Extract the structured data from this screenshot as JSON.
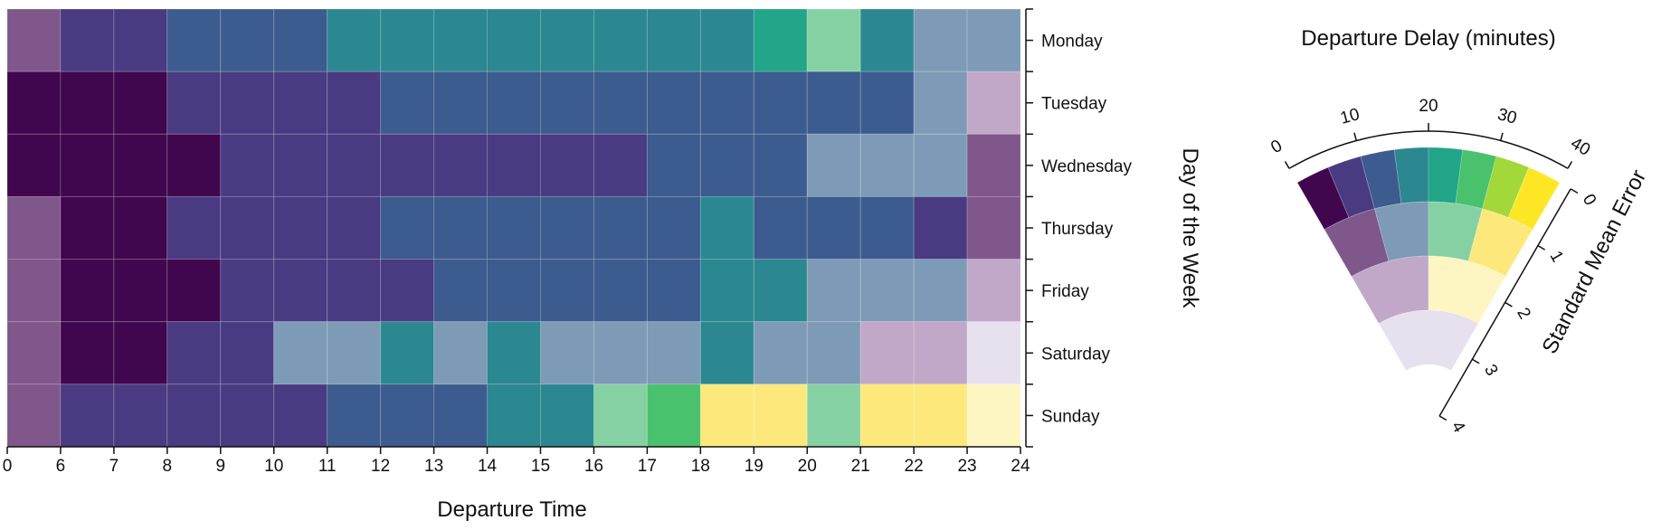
{
  "chart_data": {
    "type": "heatmap",
    "encoding": "value-suppressing uncertainty palette: hue encodes delay, lightness encodes uncertainty",
    "x": {
      "label": "Departure Time",
      "ticks": [
        "0",
        "6",
        "7",
        "8",
        "9",
        "10",
        "11",
        "12",
        "13",
        "14",
        "15",
        "16",
        "17",
        "18",
        "19",
        "20",
        "21",
        "22",
        "23",
        "24"
      ],
      "bins": [
        [
          0,
          6
        ],
        [
          6,
          7
        ],
        [
          7,
          8
        ],
        [
          8,
          9
        ],
        [
          9,
          10
        ],
        [
          10,
          11
        ],
        [
          11,
          12
        ],
        [
          12,
          13
        ],
        [
          13,
          14
        ],
        [
          14,
          15
        ],
        [
          15,
          16
        ],
        [
          16,
          17
        ],
        [
          17,
          18
        ],
        [
          18,
          19
        ],
        [
          19,
          20
        ],
        [
          20,
          21
        ],
        [
          21,
          22
        ],
        [
          22,
          23
        ],
        [
          23,
          24
        ]
      ]
    },
    "y": {
      "label": "Day of the Week",
      "categories": [
        "Monday",
        "Tuesday",
        "Wednesday",
        "Thursday",
        "Friday",
        "Saturday",
        "Sunday"
      ]
    },
    "cells": [
      [
        "#7f578b",
        "#493a82",
        "#493a82",
        "#3c5b8e",
        "#3c5b8e",
        "#3c5b8e",
        "#2b8790",
        "#2b8790",
        "#2b8790",
        "#2b8790",
        "#2b8790",
        "#2b8790",
        "#2b8790",
        "#2b8790",
        "#22a588",
        "#86d1a4",
        "#2b8790",
        "#7d9bb6",
        "#7d9bb6"
      ],
      [
        "#41074e",
        "#41074e",
        "#41074e",
        "#493a82",
        "#493a82",
        "#493a82",
        "#493a82",
        "#3c5b8e",
        "#3c5b8e",
        "#3c5b8e",
        "#3c5b8e",
        "#3c5b8e",
        "#3c5b8e",
        "#3c5b8e",
        "#3c5b8e",
        "#3c5b8e",
        "#3c5b8e",
        "#7d9bb6",
        "#c2a8c8"
      ],
      [
        "#41074e",
        "#41074e",
        "#41074e",
        "#41074e",
        "#493a82",
        "#493a82",
        "#493a82",
        "#493a82",
        "#493a82",
        "#493a82",
        "#493a82",
        "#493a82",
        "#3c5b8e",
        "#3c5b8e",
        "#3c5b8e",
        "#7d9bb6",
        "#7d9bb6",
        "#7d9bb6",
        "#7f578b"
      ],
      [
        "#7f578b",
        "#41074e",
        "#41074e",
        "#493a82",
        "#493a82",
        "#493a82",
        "#493a82",
        "#3c5b8e",
        "#3c5b8e",
        "#3c5b8e",
        "#3c5b8e",
        "#3c5b8e",
        "#3c5b8e",
        "#2b8790",
        "#3c5b8e",
        "#3c5b8e",
        "#3c5b8e",
        "#493a82",
        "#7f578b"
      ],
      [
        "#7f578b",
        "#41074e",
        "#41074e",
        "#41074e",
        "#493a82",
        "#493a82",
        "#493a82",
        "#493a82",
        "#3c5b8e",
        "#3c5b8e",
        "#3c5b8e",
        "#3c5b8e",
        "#3c5b8e",
        "#2b8790",
        "#2b8790",
        "#7d9bb6",
        "#7d9bb6",
        "#7d9bb6",
        "#c2a8c8"
      ],
      [
        "#7f578b",
        "#41074e",
        "#41074e",
        "#493a82",
        "#493a82",
        "#7d9bb6",
        "#7d9bb6",
        "#2b8790",
        "#7d9bb6",
        "#2b8790",
        "#7d9bb6",
        "#7d9bb6",
        "#7d9bb6",
        "#2b8790",
        "#7d9bb6",
        "#7d9bb6",
        "#c2a8c8",
        "#c2a8c8",
        "#e7e1ef"
      ],
      [
        "#7f578b",
        "#493a82",
        "#493a82",
        "#493a82",
        "#493a82",
        "#493a82",
        "#3c5b8e",
        "#3c5b8e",
        "#3c5b8e",
        "#2b8790",
        "#2b8790",
        "#86d1a4",
        "#4ac16d",
        "#fde97b",
        "#fde97b",
        "#86d1a4",
        "#fde97b",
        "#fde97b",
        "#fef6c2"
      ]
    ],
    "legend": {
      "title": "Departure Delay (minutes)",
      "delay_ticks": [
        "0",
        "10",
        "20",
        "30",
        "40"
      ],
      "delay_range": [
        0,
        40
      ],
      "uncertainty_label": "Standard Mean Error",
      "uncertainty_ticks": [
        "0",
        "1",
        "2",
        "3",
        "4"
      ],
      "uncertainty_range": [
        0,
        4
      ],
      "rings": [
        [
          "#41074e",
          "#493a82",
          "#3c5b8e",
          "#2b8790",
          "#22a588",
          "#4ac16d",
          "#a2d83a",
          "#fde725"
        ],
        [
          "#7f578b",
          "#7d9bb6",
          "#86d1a4",
          "#fde97b"
        ],
        [
          "#c2a8c8",
          "#fef6c2"
        ],
        [
          "#e7e1ef"
        ]
      ]
    }
  }
}
